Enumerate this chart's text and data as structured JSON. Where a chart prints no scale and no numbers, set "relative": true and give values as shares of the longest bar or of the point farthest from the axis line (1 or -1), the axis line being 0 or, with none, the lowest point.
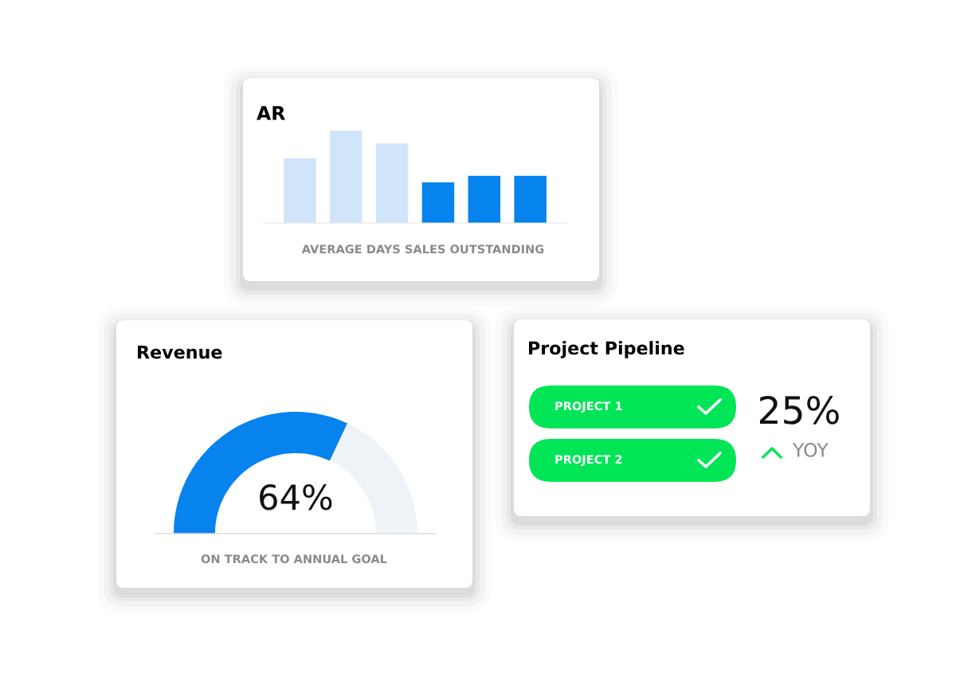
{
  "chart_data": [
    {
      "type": "bar",
      "title": "AR",
      "xlabel": "AVERAGE DAYS SALES OUTSTANDING",
      "relative": true,
      "categories": [
        null,
        null,
        null,
        null,
        null,
        null
      ],
      "values": [
        0.7,
        1,
        0.86,
        0.44,
        0.51,
        0.51
      ],
      "colors": [
        "#d0e4fa",
        "#d0e4fa",
        "#d0e4fa",
        "#0783ee",
        "#0783ee",
        "#0783ee"
      ]
    },
    {
      "type": "donut",
      "title": "Revenue",
      "xlabel": "ON TRACK TO ANNUAL GOAL",
      "categories": [
        null,
        null
      ],
      "values": [
        64,
        36
      ],
      "colors": [
        "#0783ee",
        "#eef3f7"
      ],
      "value_labels": [
        "64%",
        null
      ]
    },
    {
      "type": "other",
      "title": "Project Pipeline",
      "annotations": [
        "PROJECT 1",
        "PROJECT 2",
        "25%",
        "YOY"
      ]
    }
  ]
}
